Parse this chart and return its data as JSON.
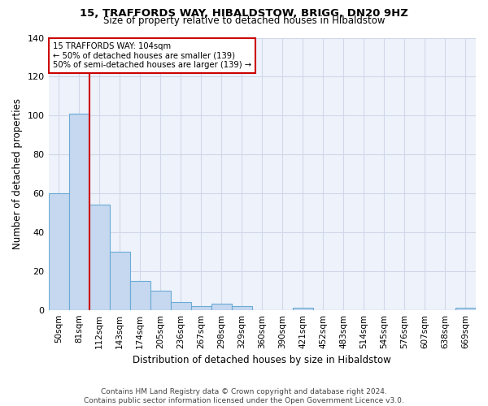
{
  "title1": "15, TRAFFORDS WAY, HIBALDSTOW, BRIGG, DN20 9HZ",
  "title2": "Size of property relative to detached houses in Hibaldstow",
  "xlabel": "Distribution of detached houses by size in Hibaldstow",
  "ylabel": "Number of detached properties",
  "footer1": "Contains HM Land Registry data © Crown copyright and database right 2024.",
  "footer2": "Contains public sector information licensed under the Open Government Licence v3.0.",
  "bin_labels": [
    "50sqm",
    "81sqm",
    "112sqm",
    "143sqm",
    "174sqm",
    "205sqm",
    "236sqm",
    "267sqm",
    "298sqm",
    "329sqm",
    "360sqm",
    "390sqm",
    "421sqm",
    "452sqm",
    "483sqm",
    "514sqm",
    "545sqm",
    "576sqm",
    "607sqm",
    "638sqm",
    "669sqm"
  ],
  "bar_heights": [
    60,
    101,
    54,
    30,
    15,
    10,
    4,
    2,
    3,
    2,
    0,
    0,
    1,
    0,
    0,
    0,
    0,
    0,
    0,
    0,
    1
  ],
  "bar_color": "#c5d8f0",
  "bar_edge_color": "#6aaad4",
  "grid_color": "#d0d8e8",
  "bg_color": "#eef2fb",
  "vline_x": 1.5,
  "vline_color": "#cc0000",
  "annotation_line1": "15 TRAFFORDS WAY: 104sqm",
  "annotation_line2": "← 50% of detached houses are smaller (139)",
  "annotation_line3": "50% of semi-detached houses are larger (139) →",
  "annotation_box_color": "#ffffff",
  "annotation_box_edge": "#cc0000",
  "ylim": [
    0,
    140
  ],
  "yticks": [
    0,
    20,
    40,
    60,
    80,
    100,
    120,
    140
  ]
}
